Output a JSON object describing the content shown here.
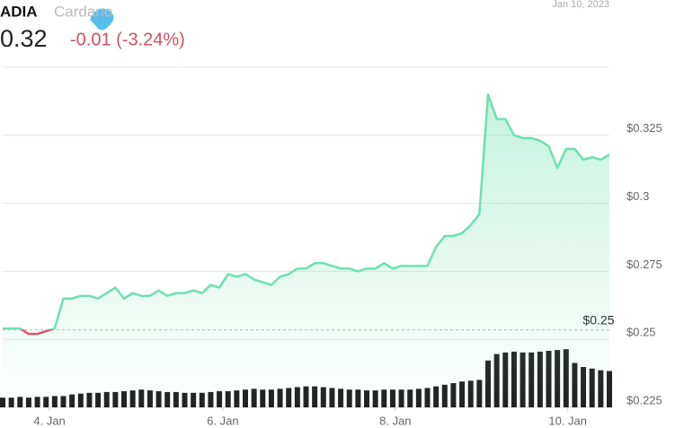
{
  "header": {
    "logo": "ADIA",
    "asset": "Cardano",
    "price": "0.32",
    "change": "-0.01 (-3.24%)",
    "date": "Jan 10, 2023"
  },
  "chart_data": {
    "type": "line",
    "series": [
      {
        "name": "Cardano",
        "color": "#6ee0b0",
        "down_color": "#e0506a",
        "values": [
          0.254,
          0.254,
          0.254,
          0.252,
          0.252,
          0.253,
          0.254,
          0.265,
          0.265,
          0.266,
          0.266,
          0.265,
          0.267,
          0.269,
          0.265,
          0.267,
          0.266,
          0.266,
          0.268,
          0.266,
          0.267,
          0.267,
          0.268,
          0.267,
          0.27,
          0.269,
          0.274,
          0.273,
          0.274,
          0.272,
          0.271,
          0.27,
          0.273,
          0.274,
          0.276,
          0.276,
          0.278,
          0.278,
          0.277,
          0.276,
          0.276,
          0.275,
          0.276,
          0.276,
          0.278,
          0.276,
          0.277,
          0.277,
          0.277,
          0.277,
          0.284,
          0.288,
          0.288,
          0.289,
          0.292,
          0.296,
          0.34,
          0.331,
          0.331,
          0.325,
          0.324,
          0.324,
          0.323,
          0.321,
          0.313,
          0.32,
          0.32,
          0.316,
          0.317,
          0.316,
          0.318
        ]
      }
    ],
    "volume": [
      12,
      12,
      13,
      12,
      13,
      13,
      14,
      14,
      16,
      17,
      18,
      18,
      19,
      19,
      20,
      21,
      22,
      21,
      20,
      19,
      19,
      18,
      18,
      18,
      19,
      20,
      20,
      21,
      22,
      23,
      22,
      22,
      23,
      24,
      25,
      26,
      26,
      25,
      24,
      23,
      22,
      22,
      21,
      21,
      22,
      22,
      22,
      22,
      23,
      24,
      26,
      28,
      30,
      32,
      33,
      34,
      58,
      66,
      68,
      69,
      68,
      68,
      69,
      70,
      71,
      72,
      55,
      50,
      48,
      46,
      45
    ],
    "volume_lim": [
      0,
      100
    ],
    "reference": {
      "value": 0.2535,
      "label": "$0.25"
    },
    "xlim": [
      0,
      70
    ],
    "xticks": [
      {
        "value": 5.4,
        "label": "4. Jan"
      },
      {
        "value": 25.4,
        "label": "6. Jan"
      },
      {
        "value": 45.3,
        "label": "8. Jan"
      },
      {
        "value": 65.2,
        "label": "10. Jan"
      }
    ],
    "ylim": [
      0.225,
      0.35
    ],
    "yticks": [
      {
        "value": 0.225,
        "label": "$0.225"
      },
      {
        "value": 0.25,
        "label": "$0.25"
      },
      {
        "value": 0.275,
        "label": "$0.275"
      },
      {
        "value": 0.3,
        "label": "$0.3"
      },
      {
        "value": 0.325,
        "label": "$0.325"
      }
    ],
    "grid": true
  }
}
